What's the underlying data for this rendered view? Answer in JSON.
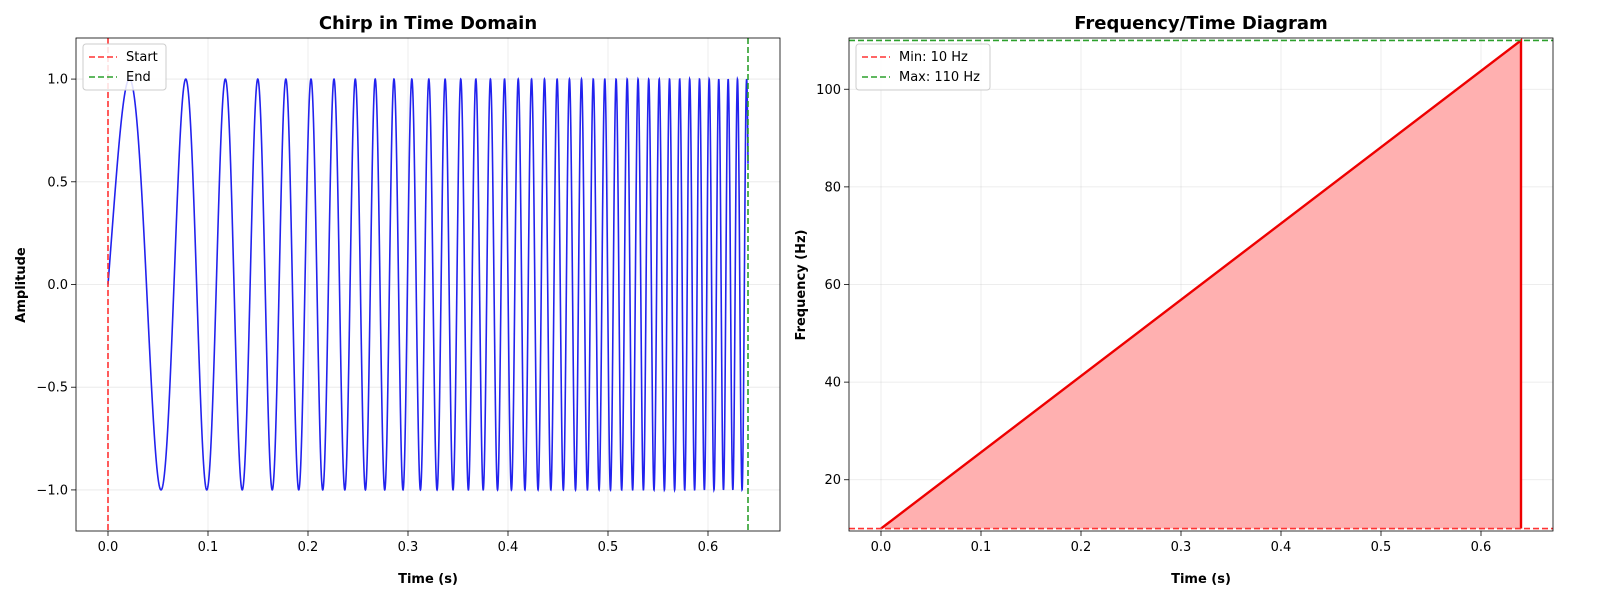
{
  "chart_data": [
    {
      "type": "line",
      "title": "Chirp in Time Domain",
      "xlabel": "Time (s)",
      "ylabel": "Amplitude",
      "xlim": [
        -0.032,
        0.672
      ],
      "ylim": [
        -1.2,
        1.2
      ],
      "xticks": [
        0.0,
        0.1,
        0.2,
        0.3,
        0.4,
        0.5,
        0.6
      ],
      "xtick_labels": [
        "0.0",
        "0.1",
        "0.2",
        "0.3",
        "0.4",
        "0.5",
        "0.6"
      ],
      "yticks": [
        -1.0,
        -0.5,
        0.0,
        0.5,
        1.0
      ],
      "ytick_labels": [
        "−1.0",
        "−0.5",
        "0.0",
        "0.5",
        "1.0"
      ],
      "grid": true,
      "signal": {
        "function": "sin",
        "f0_hz": 10,
        "f1_hz": 110,
        "t_start": 0,
        "t_end": 0.64,
        "color": "#2222ee"
      },
      "vlines": [
        {
          "x": 0.0,
          "label": "Start",
          "color": "#ff3333"
        },
        {
          "x": 0.64,
          "label": "End",
          "color": "#2ca02c"
        }
      ],
      "legend": {
        "position": "top-left",
        "entries": [
          "Start",
          "End"
        ]
      }
    },
    {
      "type": "area",
      "title": "Frequency/Time Diagram",
      "xlabel": "Time (s)",
      "ylabel": "Frequency (Hz)",
      "xlim": [
        -0.032,
        0.672
      ],
      "ylim": [
        9.5,
        110.5
      ],
      "xticks": [
        0.0,
        0.1,
        0.2,
        0.3,
        0.4,
        0.5,
        0.6
      ],
      "xtick_labels": [
        "0.0",
        "0.1",
        "0.2",
        "0.3",
        "0.4",
        "0.5",
        "0.6"
      ],
      "yticks": [
        20,
        40,
        60,
        80,
        100
      ],
      "ytick_labels": [
        "20",
        "40",
        "60",
        "80",
        "100"
      ],
      "grid": true,
      "series": [
        {
          "x": [
            0.0,
            0.64
          ],
          "y": [
            10,
            110
          ],
          "color": "#ee0000",
          "fill": "#ffb0b0"
        }
      ],
      "hlines": [
        {
          "y": 10,
          "label": "Min: 10 Hz",
          "color": "#ff3333"
        },
        {
          "y": 110,
          "label": "Max: 110 Hz",
          "color": "#2ca02c"
        }
      ],
      "legend": {
        "position": "top-left",
        "entries": [
          "Min: 10 Hz",
          "Max: 110 Hz"
        ]
      }
    }
  ]
}
